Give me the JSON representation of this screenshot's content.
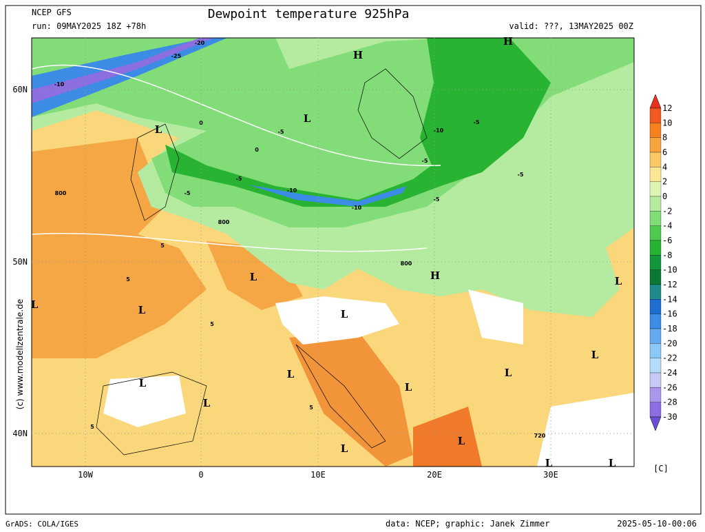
{
  "header": {
    "model": "NCEP GFS",
    "run": "run: 09MAY2025 18Z +78h",
    "title": "Dewpoint temperature 925hPa",
    "valid": "valid: ???, 13MAY2025 00Z"
  },
  "credit": "(c) www.modellzentrale.de",
  "lat_labels": [
    "60N",
    "50N",
    "40N"
  ],
  "lon_labels": [
    "10W",
    "0",
    "10E",
    "20E",
    "30E"
  ],
  "map_labels": [
    "H",
    "H",
    "H",
    "L",
    "L",
    "L",
    "L",
    "L",
    "L",
    "L",
    "L",
    "L",
    "L",
    "L",
    "L",
    "L",
    "L",
    "L",
    "L",
    "L",
    "-20",
    "-25",
    "-10",
    "-10",
    "-10",
    "-10",
    "-5",
    "-5",
    "-5",
    "-5",
    "-5",
    "-5",
    "-5",
    "800",
    "800",
    "800",
    "720",
    "0",
    "0",
    "5",
    "5",
    "5",
    "5",
    "5"
  ],
  "colorbar": {
    "levels": [
      12,
      10,
      8,
      6,
      4,
      2,
      0,
      -2,
      -4,
      -6,
      -8,
      -10,
      -12,
      -14,
      -16,
      -18,
      -20,
      -22,
      -24,
      -26,
      -28,
      -30
    ],
    "colors": [
      "#e8321e",
      "#f05a1e",
      "#f5821e",
      "#f7a53c",
      "#fac864",
      "#fbe696",
      "#dcf5b4",
      "#b4eba0",
      "#82dc78",
      "#50c850",
      "#28b432",
      "#14963c",
      "#0a7832",
      "#1e8c8c",
      "#1e6ed2",
      "#3c8ce6",
      "#64aaf0",
      "#8cc8f5",
      "#b4dcfa",
      "#c8c8f5",
      "#aa96eb",
      "#8c6ee1",
      "#6e50d7"
    ],
    "unit": "[C]"
  },
  "footer": {
    "left": "GrADS: COLA/IGES",
    "data": "data: NCEP; graphic: Janek Zimmer",
    "date": "2025-05-10-00:06"
  }
}
